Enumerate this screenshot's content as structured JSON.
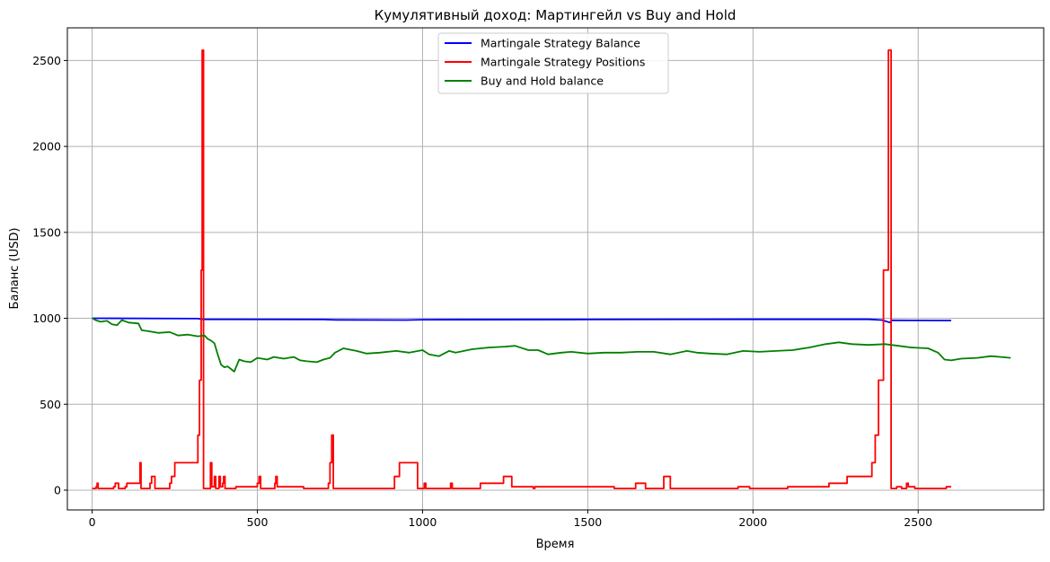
{
  "chart_data": {
    "type": "line",
    "title": "Кумулятивный доход: Мартингейл vs Buy and Hold",
    "xlabel": "Время",
    "ylabel": "Баланс (USD)",
    "xlim": [
      -75,
      2880
    ],
    "ylim": [
      -115,
      2690
    ],
    "grid": true,
    "legend_position": "upper center",
    "x_ticks": [
      0,
      500,
      1000,
      1500,
      2000,
      2500
    ],
    "y_ticks": [
      0,
      500,
      1000,
      1500,
      2000,
      2500
    ],
    "series": [
      {
        "name": "Martingale Strategy Balance",
        "color": "#0000ff",
        "style": "line",
        "points": [
          [
            0,
            1000
          ],
          [
            320,
            998
          ],
          [
            335,
            994
          ],
          [
            700,
            993
          ],
          [
            740,
            991
          ],
          [
            950,
            990
          ],
          [
            1000,
            992
          ],
          [
            1500,
            993
          ],
          [
            2000,
            994
          ],
          [
            2350,
            994
          ],
          [
            2390,
            990
          ],
          [
            2415,
            975
          ],
          [
            2420,
            988
          ],
          [
            2600,
            987
          ]
        ]
      },
      {
        "name": "Martingale Strategy Positions",
        "color": "#ff0000",
        "style": "step",
        "points": [
          [
            0,
            10
          ],
          [
            12,
            20
          ],
          [
            15,
            40
          ],
          [
            18,
            10
          ],
          [
            60,
            10
          ],
          [
            65,
            20
          ],
          [
            70,
            40
          ],
          [
            80,
            10
          ],
          [
            95,
            10
          ],
          [
            100,
            20
          ],
          [
            105,
            40
          ],
          [
            140,
            40
          ],
          [
            145,
            160
          ],
          [
            148,
            10
          ],
          [
            170,
            10
          ],
          [
            175,
            40
          ],
          [
            180,
            80
          ],
          [
            190,
            10
          ],
          [
            230,
            10
          ],
          [
            235,
            40
          ],
          [
            240,
            80
          ],
          [
            250,
            160
          ],
          [
            315,
            160
          ],
          [
            320,
            320
          ],
          [
            325,
            640
          ],
          [
            330,
            1280
          ],
          [
            333,
            2560
          ],
          [
            337,
            10
          ],
          [
            355,
            10
          ],
          [
            358,
            160
          ],
          [
            362,
            20
          ],
          [
            370,
            80
          ],
          [
            374,
            10
          ],
          [
            384,
            80
          ],
          [
            388,
            20
          ],
          [
            395,
            40
          ],
          [
            398,
            80
          ],
          [
            402,
            10
          ],
          [
            430,
            10
          ],
          [
            435,
            20
          ],
          [
            445,
            20
          ],
          [
            470,
            20
          ],
          [
            500,
            40
          ],
          [
            505,
            80
          ],
          [
            510,
            10
          ],
          [
            550,
            10
          ],
          [
            553,
            40
          ],
          [
            556,
            80
          ],
          [
            560,
            20
          ],
          [
            600,
            20
          ],
          [
            640,
            10
          ],
          [
            700,
            10
          ],
          [
            715,
            40
          ],
          [
            720,
            160
          ],
          [
            725,
            320
          ],
          [
            730,
            10
          ],
          [
            755,
            10
          ],
          [
            900,
            10
          ],
          [
            915,
            80
          ],
          [
            930,
            160
          ],
          [
            980,
            160
          ],
          [
            985,
            10
          ],
          [
            1000,
            10
          ],
          [
            1005,
            40
          ],
          [
            1010,
            10
          ],
          [
            1080,
            10
          ],
          [
            1085,
            40
          ],
          [
            1090,
            10
          ],
          [
            1170,
            10
          ],
          [
            1175,
            40
          ],
          [
            1240,
            40
          ],
          [
            1245,
            80
          ],
          [
            1265,
            80
          ],
          [
            1270,
            20
          ],
          [
            1330,
            20
          ],
          [
            1335,
            10
          ],
          [
            1340,
            20
          ],
          [
            1500,
            20
          ],
          [
            1580,
            10
          ],
          [
            1640,
            10
          ],
          [
            1645,
            40
          ],
          [
            1670,
            40
          ],
          [
            1675,
            10
          ],
          [
            1720,
            10
          ],
          [
            1730,
            80
          ],
          [
            1745,
            80
          ],
          [
            1750,
            10
          ],
          [
            1850,
            10
          ],
          [
            1950,
            10
          ],
          [
            1955,
            20
          ],
          [
            1985,
            20
          ],
          [
            1990,
            10
          ],
          [
            2100,
            10
          ],
          [
            2105,
            20
          ],
          [
            2220,
            20
          ],
          [
            2230,
            40
          ],
          [
            2280,
            40
          ],
          [
            2285,
            80
          ],
          [
            2350,
            80
          ],
          [
            2360,
            160
          ],
          [
            2370,
            320
          ],
          [
            2380,
            640
          ],
          [
            2395,
            1280
          ],
          [
            2410,
            2560
          ],
          [
            2418,
            10
          ],
          [
            2430,
            10
          ],
          [
            2435,
            20
          ],
          [
            2440,
            20
          ],
          [
            2450,
            10
          ],
          [
            2460,
            10
          ],
          [
            2465,
            40
          ],
          [
            2470,
            20
          ],
          [
            2480,
            20
          ],
          [
            2490,
            10
          ],
          [
            2580,
            10
          ],
          [
            2585,
            20
          ],
          [
            2600,
            20
          ]
        ]
      },
      {
        "name": "Buy and Hold balance",
        "color": "#008000",
        "style": "line",
        "points": [
          [
            0,
            1000
          ],
          [
            10,
            990
          ],
          [
            25,
            980
          ],
          [
            45,
            985
          ],
          [
            60,
            965
          ],
          [
            75,
            960
          ],
          [
            90,
            990
          ],
          [
            110,
            975
          ],
          [
            140,
            970
          ],
          [
            150,
            930
          ],
          [
            170,
            925
          ],
          [
            200,
            915
          ],
          [
            235,
            920
          ],
          [
            260,
            900
          ],
          [
            290,
            905
          ],
          [
            320,
            895
          ],
          [
            340,
            900
          ],
          [
            350,
            880
          ],
          [
            360,
            870
          ],
          [
            370,
            855
          ],
          [
            380,
            790
          ],
          [
            390,
            730
          ],
          [
            400,
            715
          ],
          [
            410,
            720
          ],
          [
            420,
            705
          ],
          [
            430,
            690
          ],
          [
            445,
            760
          ],
          [
            460,
            750
          ],
          [
            480,
            745
          ],
          [
            500,
            770
          ],
          [
            530,
            760
          ],
          [
            550,
            775
          ],
          [
            580,
            765
          ],
          [
            610,
            775
          ],
          [
            630,
            755
          ],
          [
            650,
            750
          ],
          [
            680,
            745
          ],
          [
            700,
            760
          ],
          [
            720,
            770
          ],
          [
            735,
            800
          ],
          [
            760,
            825
          ],
          [
            800,
            810
          ],
          [
            830,
            795
          ],
          [
            870,
            800
          ],
          [
            920,
            810
          ],
          [
            960,
            800
          ],
          [
            1000,
            815
          ],
          [
            1020,
            790
          ],
          [
            1050,
            780
          ],
          [
            1080,
            810
          ],
          [
            1100,
            800
          ],
          [
            1150,
            820
          ],
          [
            1200,
            830
          ],
          [
            1250,
            835
          ],
          [
            1280,
            840
          ],
          [
            1320,
            815
          ],
          [
            1350,
            815
          ],
          [
            1380,
            790
          ],
          [
            1420,
            800
          ],
          [
            1450,
            805
          ],
          [
            1500,
            795
          ],
          [
            1550,
            800
          ],
          [
            1600,
            800
          ],
          [
            1650,
            805
          ],
          [
            1700,
            805
          ],
          [
            1750,
            790
          ],
          [
            1800,
            810
          ],
          [
            1830,
            800
          ],
          [
            1870,
            795
          ],
          [
            1920,
            790
          ],
          [
            1970,
            810
          ],
          [
            2020,
            805
          ],
          [
            2070,
            810
          ],
          [
            2120,
            815
          ],
          [
            2170,
            830
          ],
          [
            2220,
            850
          ],
          [
            2260,
            860
          ],
          [
            2300,
            850
          ],
          [
            2350,
            845
          ],
          [
            2400,
            850
          ],
          [
            2440,
            840
          ],
          [
            2480,
            830
          ],
          [
            2530,
            825
          ],
          [
            2560,
            800
          ],
          [
            2580,
            760
          ],
          [
            2600,
            755
          ],
          [
            2630,
            765
          ],
          [
            2680,
            770
          ],
          [
            2720,
            780
          ],
          [
            2750,
            775
          ],
          [
            2780,
            770
          ]
        ]
      }
    ]
  }
}
